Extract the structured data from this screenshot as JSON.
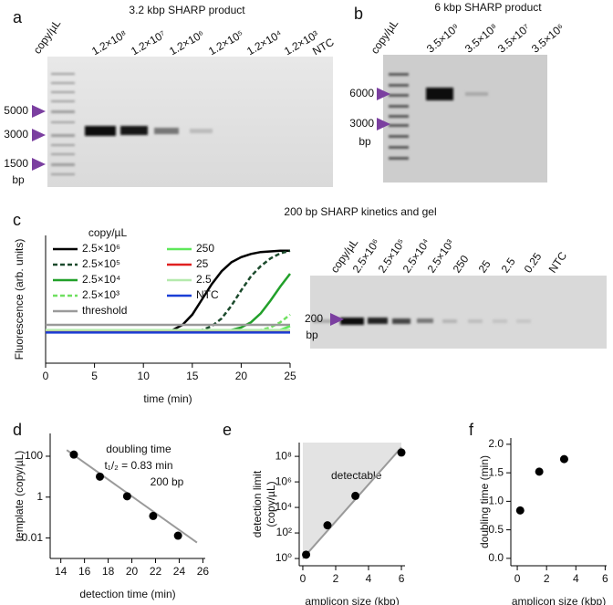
{
  "panel_labels": [
    "a",
    "b",
    "c",
    "d",
    "e",
    "f"
  ],
  "gel_a": {
    "title": "3.2 kbp SHARP product",
    "unit_label": "copy/µL",
    "lanes": [
      "1.2×10⁸",
      "1.2×10⁷",
      "1.2×10⁶",
      "1.2×10⁵",
      "1.2×10⁴",
      "1.2×10³",
      "NTC"
    ],
    "markers": [
      "5000",
      "3000",
      "1500"
    ],
    "marker_unit": "bp"
  },
  "gel_b": {
    "title": "6 kbp SHARP product",
    "unit_label": "copy/µL",
    "lanes": [
      "3.5×10⁹",
      "3.5×10⁸",
      "3.5×10⁷",
      "3.5×10⁶"
    ],
    "markers": [
      "6000",
      "3000"
    ],
    "marker_unit": "bp"
  },
  "gel_c": {
    "unit_label": "copy/µL",
    "lanes": [
      "2.5×10⁶",
      "2.5×10⁵",
      "2.5×10⁴",
      "2.5×10³",
      "250",
      "25",
      "2.5",
      "0.25",
      "NTC"
    ],
    "markers": [
      "200"
    ],
    "marker_unit": "bp"
  },
  "chart_data": [
    {
      "type": "line",
      "title": "200 bp SHARP kinetics and gel",
      "x_label": "time (min)",
      "y_label": "Fluorescence (arb. units)",
      "legend_title": "copy/µL",
      "x": [
        0,
        1,
        2,
        3,
        4,
        5,
        6,
        7,
        8,
        9,
        10,
        11,
        12,
        13,
        14,
        15,
        16,
        17,
        18,
        19,
        20,
        21,
        22,
        23,
        24,
        25
      ],
      "xlim": [
        0,
        25
      ],
      "xticks": [
        0,
        5,
        10,
        15,
        20,
        25
      ],
      "ylim": [
        0,
        1
      ],
      "series": [
        {
          "name": "2.5×10⁶",
          "color": "#000000",
          "dash": false,
          "values": [
            0.25,
            0.25,
            0.25,
            0.25,
            0.25,
            0.25,
            0.25,
            0.25,
            0.25,
            0.25,
            0.25,
            0.25,
            0.25,
            0.26,
            0.3,
            0.38,
            0.5,
            0.62,
            0.72,
            0.79,
            0.83,
            0.855,
            0.87,
            0.875,
            0.88,
            0.88
          ]
        },
        {
          "name": "2.5×10⁵",
          "color": "#1b4a2c",
          "dash": true,
          "values": [
            0.25,
            0.25,
            0.25,
            0.25,
            0.25,
            0.25,
            0.25,
            0.25,
            0.25,
            0.25,
            0.25,
            0.25,
            0.25,
            0.25,
            0.25,
            0.25,
            0.26,
            0.29,
            0.35,
            0.45,
            0.57,
            0.68,
            0.76,
            0.82,
            0.86,
            0.88
          ]
        },
        {
          "name": "2.5×10⁴",
          "color": "#22a02a",
          "dash": false,
          "values": [
            0.25,
            0.25,
            0.25,
            0.25,
            0.25,
            0.25,
            0.25,
            0.25,
            0.25,
            0.25,
            0.25,
            0.25,
            0.25,
            0.25,
            0.25,
            0.25,
            0.25,
            0.25,
            0.25,
            0.26,
            0.28,
            0.32,
            0.39,
            0.49,
            0.6,
            0.7
          ]
        },
        {
          "name": "2.5×10³",
          "color": "#6fe060",
          "dash": true,
          "values": [
            0.25,
            0.25,
            0.25,
            0.25,
            0.25,
            0.25,
            0.25,
            0.25,
            0.25,
            0.25,
            0.25,
            0.25,
            0.25,
            0.25,
            0.25,
            0.25,
            0.25,
            0.25,
            0.25,
            0.25,
            0.25,
            0.25,
            0.26,
            0.28,
            0.32,
            0.38
          ]
        },
        {
          "name": "threshold",
          "color": "#9a9a9a",
          "dash": false,
          "values": [
            0.3,
            0.3,
            0.3,
            0.3,
            0.3,
            0.3,
            0.3,
            0.3,
            0.3,
            0.3,
            0.3,
            0.3,
            0.3,
            0.3,
            0.3,
            0.3,
            0.3,
            0.3,
            0.3,
            0.3,
            0.3,
            0.3,
            0.3,
            0.3,
            0.3,
            0.3
          ]
        },
        {
          "name": "250",
          "color": "#5ee85a",
          "dash": false,
          "values": [
            0.25,
            0.25,
            0.25,
            0.25,
            0.25,
            0.25,
            0.25,
            0.25,
            0.25,
            0.25,
            0.25,
            0.25,
            0.25,
            0.25,
            0.25,
            0.25,
            0.25,
            0.25,
            0.25,
            0.25,
            0.25,
            0.25,
            0.25,
            0.25,
            0.26,
            0.29
          ]
        },
        {
          "name": "25",
          "color": "#e02020",
          "dash": false,
          "values": [
            0.25,
            0.25,
            0.25,
            0.25,
            0.25,
            0.25,
            0.25,
            0.25,
            0.25,
            0.25,
            0.25,
            0.25,
            0.25,
            0.25,
            0.25,
            0.25,
            0.25,
            0.25,
            0.25,
            0.25,
            0.25,
            0.25,
            0.25,
            0.25,
            0.25,
            0.25
          ]
        },
        {
          "name": "2.5",
          "color": "#b5eaad",
          "dash": false,
          "values": [
            0.26,
            0.26,
            0.26,
            0.26,
            0.26,
            0.26,
            0.26,
            0.26,
            0.26,
            0.26,
            0.26,
            0.26,
            0.26,
            0.26,
            0.26,
            0.26,
            0.26,
            0.26,
            0.26,
            0.26,
            0.26,
            0.26,
            0.26,
            0.26,
            0.26,
            0.26
          ]
        },
        {
          "name": "NTC",
          "color": "#1a3fd6",
          "dash": false,
          "values": [
            0.24,
            0.24,
            0.24,
            0.24,
            0.24,
            0.24,
            0.24,
            0.24,
            0.24,
            0.24,
            0.24,
            0.24,
            0.24,
            0.24,
            0.24,
            0.24,
            0.24,
            0.24,
            0.24,
            0.24,
            0.24,
            0.24,
            0.24,
            0.24,
            0.24,
            0.24
          ]
        }
      ]
    },
    {
      "type": "scatter",
      "x_label": "detection time (min)",
      "y_label": "template (copy/µL)",
      "annotations": [
        "doubling time",
        "t₁/₂ = 0.83 min",
        "200 bp"
      ],
      "x": [
        15.1,
        17.3,
        19.6,
        21.8,
        23.9
      ],
      "values": [
        120,
        10,
        1.1,
        0.12,
        0.013
      ],
      "color": "#000000",
      "fit": {
        "x": [
          14.5,
          25.5
        ],
        "values": [
          200,
          0.006
        ],
        "color": "#9a9a9a"
      },
      "xlim": [
        13.1,
        26.2
      ],
      "xticks": [
        14,
        16,
        18,
        20,
        22,
        24,
        26
      ],
      "ylim": [
        0.001,
        1300
      ],
      "yticks": [
        0.01,
        1,
        100
      ],
      "log_y": true
    },
    {
      "type": "scatter",
      "x_label": "amplicon size (kbp)",
      "y_label": [
        "detection limit",
        "(copy/µL)"
      ],
      "region_label": "detectable",
      "x": [
        0.2,
        1.5,
        3.2,
        6
      ],
      "values": [
        2,
        400,
        80000,
        200000000
      ],
      "color": "#000000",
      "fit": {
        "x": [
          0,
          6
        ],
        "values": [
          1,
          500000000
        ],
        "color": "#9a9a9a"
      },
      "xlim": [
        -0.22,
        6.22
      ],
      "xticks": [
        0,
        2,
        4,
        6
      ],
      "ylim": [
        0.27,
        1200000000
      ],
      "yticks": [
        {
          "value": 1,
          "label": "10⁰"
        },
        {
          "value": 100,
          "label": "10²"
        },
        {
          "value": 10000,
          "label": "10⁴"
        },
        {
          "value": 1000000,
          "label": "10⁶"
        },
        {
          "value": 100000000,
          "label": "10⁸"
        }
      ],
      "log_y": true
    },
    {
      "type": "scatter",
      "x_label": "amplicon size (kbp)",
      "y_label": "doubling time (min)",
      "x": [
        0.2,
        1.5,
        3.2
      ],
      "values": [
        0.84,
        1.52,
        1.74
      ],
      "color": "#000000",
      "xlim": [
        -0.44,
        6.1
      ],
      "xticks": [
        0,
        2,
        4,
        6
      ],
      "ylim": [
        -0.13,
        2.11
      ],
      "yticks": [
        {
          "value": 0,
          "label": "0.0"
        },
        0.5,
        {
          "value": 1,
          "label": "1.0"
        },
        1.5,
        {
          "value": 2,
          "label": "2.0"
        }
      ]
    }
  ]
}
